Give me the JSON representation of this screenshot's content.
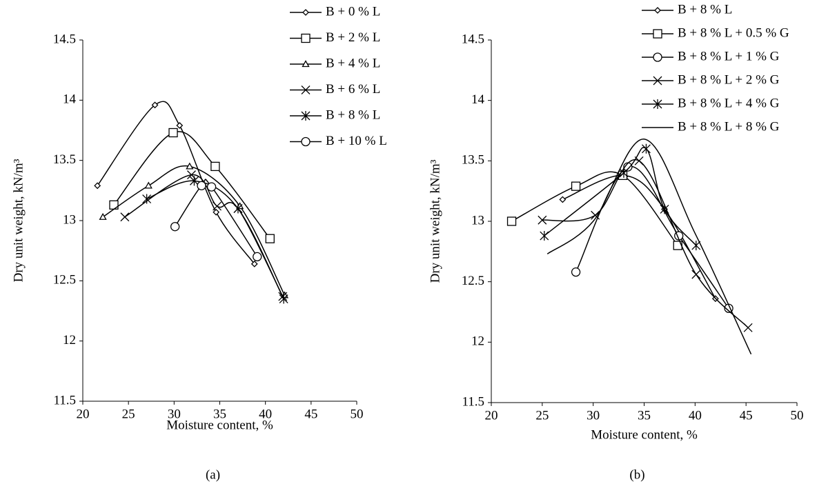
{
  "chart_data": [
    {
      "type": "line",
      "caption": "(a)",
      "xlabel": "Moisture content, %",
      "ylabel": "Dry unit weight, kN/m³",
      "xlim": [
        20,
        50
      ],
      "ylim": [
        11.5,
        14.5
      ],
      "xticks": [
        20,
        25,
        30,
        35,
        40,
        45,
        50
      ],
      "yticks": [
        11.5,
        12,
        12.5,
        13,
        13.5,
        14,
        14.5
      ],
      "smooth": true,
      "color": "#000000",
      "series": [
        {
          "name": "B + 0 % L",
          "marker": "diamond",
          "x": [
            21.6,
            27.9,
            30.6,
            34.6,
            38.8
          ],
          "values": [
            13.29,
            13.96,
            13.79,
            13.07,
            12.64
          ]
        },
        {
          "name": "B + 2 % L",
          "marker": "square",
          "x": [
            23.4,
            29.9,
            34.5,
            40.5
          ],
          "values": [
            13.13,
            13.73,
            13.45,
            12.85
          ]
        },
        {
          "name": "B + 4 % L",
          "marker": "triangle",
          "x": [
            22.2,
            27.2,
            31.7,
            37.2,
            42.1
          ],
          "values": [
            13.03,
            13.29,
            13.45,
            13.12,
            12.38
          ]
        },
        {
          "name": "B + 6 % L",
          "marker": "x",
          "x": [
            24.6,
            31.9,
            34.7,
            37.0,
            41.9
          ],
          "values": [
            13.03,
            13.38,
            13.12,
            13.1,
            12.37
          ]
        },
        {
          "name": "B + 8 % L",
          "marker": "asterisk",
          "x": [
            27.0,
            32.2,
            37.0,
            42.0
          ],
          "values": [
            13.18,
            13.33,
            13.1,
            12.35
          ]
        },
        {
          "name": "B + 10 % L",
          "marker": "circle",
          "x": [
            30.1,
            33.0,
            34.1,
            39.1
          ],
          "values": [
            12.95,
            13.29,
            13.28,
            12.7
          ]
        }
      ]
    },
    {
      "type": "line",
      "caption": "(b)",
      "xlabel": "Moisture content, %",
      "ylabel": "Dry unit weight, kN/m³",
      "xlim": [
        20,
        50
      ],
      "ylim": [
        11.5,
        14.5
      ],
      "xticks": [
        20,
        25,
        30,
        35,
        40,
        45,
        50
      ],
      "yticks": [
        11.5,
        12,
        12.5,
        13,
        13.5,
        14,
        14.5
      ],
      "smooth": true,
      "color": "#000000",
      "series": [
        {
          "name": "B + 8 % L",
          "marker": "diamond",
          "x": [
            27.0,
            33.0,
            37.0,
            42.0
          ],
          "values": [
            13.18,
            13.38,
            13.1,
            12.36
          ]
        },
        {
          "name": "B + 8 % L + 0.5 % G",
          "marker": "square",
          "x": [
            22.0,
            28.3,
            32.9,
            38.3
          ],
          "values": [
            13.0,
            13.29,
            13.38,
            12.8
          ]
        },
        {
          "name": "B + 8 % L + 1 % G",
          "marker": "circle",
          "x": [
            28.3,
            33.4,
            38.4,
            43.3
          ],
          "values": [
            12.58,
            13.45,
            12.88,
            12.28
          ]
        },
        {
          "name": "B + 8 % L + 2 % G",
          "marker": "x",
          "x": [
            25.0,
            30.2,
            34.5,
            40.1,
            45.2
          ],
          "values": [
            13.01,
            13.05,
            13.5,
            12.56,
            12.12
          ]
        },
        {
          "name": "B + 8 % L + 4 % G",
          "marker": "asterisk",
          "x": [
            25.2,
            33.0,
            35.2,
            37.0,
            40.1
          ],
          "values": [
            12.88,
            13.4,
            13.6,
            13.1,
            12.8
          ]
        },
        {
          "name": "B + 8 % L + 8 % G",
          "marker": "none",
          "x": [
            25.5,
            30.0,
            35.0,
            40.0,
            45.5
          ],
          "values": [
            12.73,
            13.0,
            13.68,
            12.9,
            11.9
          ]
        }
      ]
    }
  ]
}
